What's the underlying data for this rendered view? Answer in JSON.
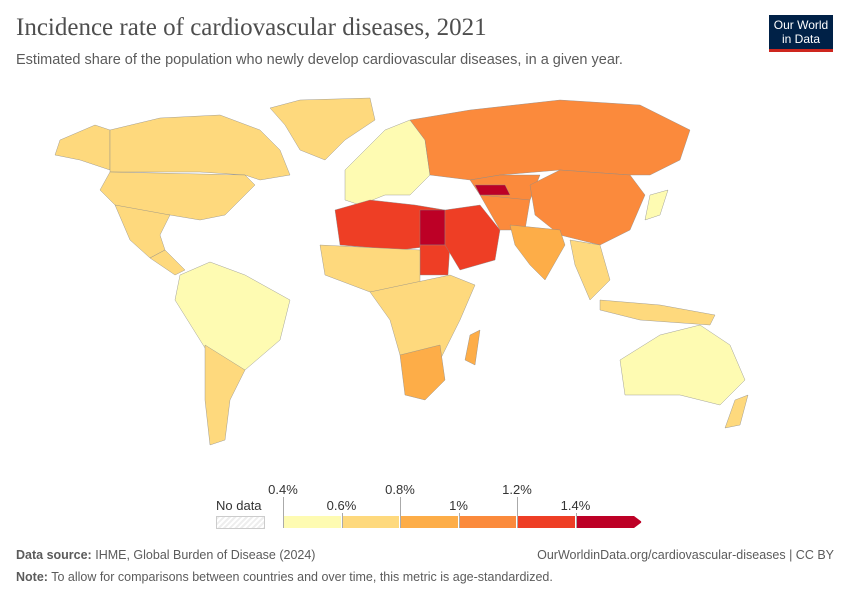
{
  "title": "Incidence rate of cardiovascular diseases, 2021",
  "subtitle": "Estimated share of the population who newly develop cardiovascular diseases, in a given year.",
  "logo": {
    "line1": "Our World",
    "line2": "in Data"
  },
  "legend": {
    "no_data": "No data",
    "ticks": [
      "0.4%",
      "0.6%",
      "0.8%",
      "1%",
      "1.2%",
      "1.4%"
    ],
    "colors": [
      "#fefbb2",
      "#fed97d",
      "#fdad48",
      "#fb8a3c",
      "#ee3e25",
      "#bd0026"
    ]
  },
  "footer": {
    "source_label": "Data source:",
    "source": "IHME, Global Burden of Disease (2024)",
    "url": "OurWorldinData.org/cardiovascular-diseases | CC BY",
    "note_label": "Note:",
    "note": "To allow for comparisons between countries and over time, this metric is age-standardized."
  }
}
